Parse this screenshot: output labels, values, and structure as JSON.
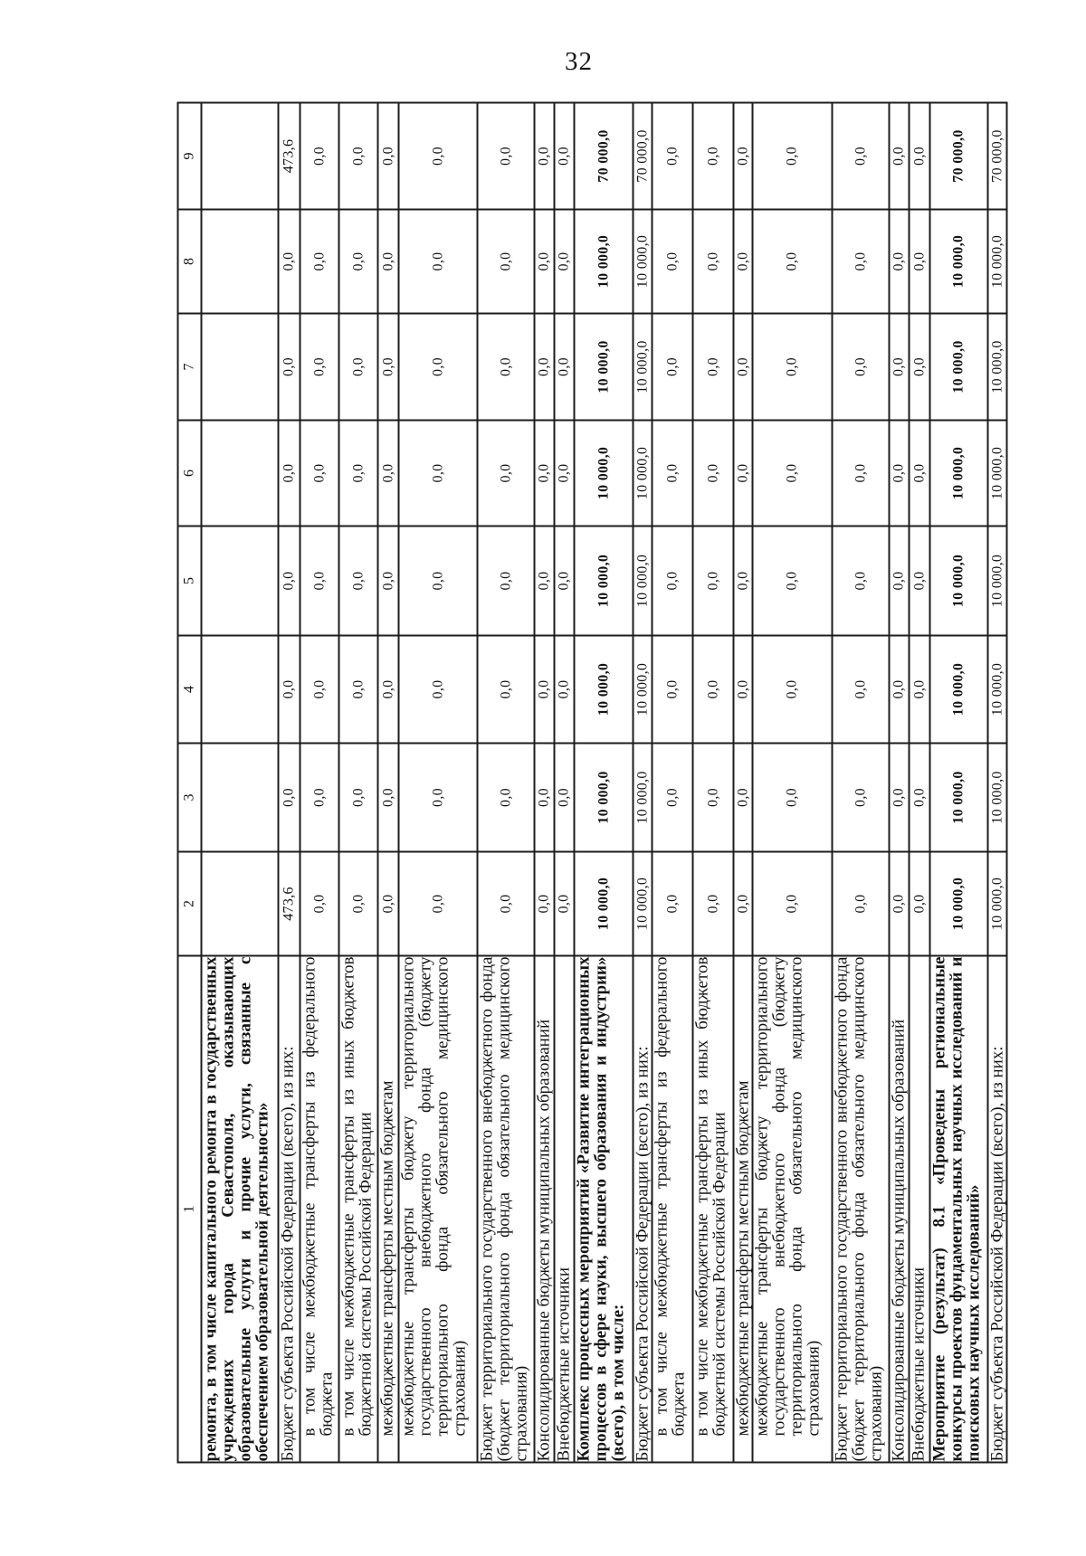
{
  "page": {
    "number": "32"
  },
  "table": {
    "column_headers": [
      "1",
      "2",
      "3",
      "4",
      "5",
      "6",
      "7",
      "8",
      "9"
    ],
    "rows": [
      {
        "label": "ремонта, в том числе капитального ремонта в государственных учреждениях города Севастополя, оказывающих образовательные услуги и прочие услуги, связанные с обеспечением образовательной деятельности»",
        "bold": true,
        "indent": false,
        "values": [
          "",
          "",
          "",
          "",
          "",
          "",
          "",
          ""
        ]
      },
      {
        "label": "Бюджет субъекта Российской Федерации (всего), из них:",
        "bold": false,
        "indent": false,
        "values": [
          "473,6",
          "0,0",
          "0,0",
          "0,0",
          "0,0",
          "0,0",
          "0,0",
          "473,6"
        ]
      },
      {
        "label": "в том числе межбюджетные трансферты из федерального бюджета",
        "bold": false,
        "indent": true,
        "values": [
          "0,0",
          "0,0",
          "0,0",
          "0,0",
          "0,0",
          "0,0",
          "0,0",
          "0,0"
        ]
      },
      {
        "label": "в том числе межбюджетные трансферты из иных бюджетов бюджетной системы Российской Федерации",
        "bold": false,
        "indent": true,
        "values": [
          "0,0",
          "0,0",
          "0,0",
          "0,0",
          "0,0",
          "0,0",
          "0,0",
          "0,0"
        ]
      },
      {
        "label": "межбюджетные трансферты местным бюджетам",
        "bold": false,
        "indent": true,
        "values": [
          "0,0",
          "0,0",
          "0,0",
          "0,0",
          "0,0",
          "0,0",
          "0,0",
          "0,0"
        ]
      },
      {
        "label": "межбюджетные трансферты бюджету территориального государственного внебюджетного фонда (бюджету территориального фонда обязательного медицинского страхования)",
        "bold": false,
        "indent": true,
        "values": [
          "0,0",
          "0,0",
          "0,0",
          "0,0",
          "0,0",
          "0,0",
          "0,0",
          "0,0"
        ]
      },
      {
        "label": "Бюджет территориального государственного внебюджетного фонда (бюджет территориального фонда обязательного медицинского страхования)",
        "bold": false,
        "indent": false,
        "values": [
          "0,0",
          "0,0",
          "0,0",
          "0,0",
          "0,0",
          "0,0",
          "0,0",
          "0,0"
        ]
      },
      {
        "label": "Консолидированные бюджеты муниципальных образований",
        "bold": false,
        "indent": false,
        "values": [
          "0,0",
          "0,0",
          "0,0",
          "0,0",
          "0,0",
          "0,0",
          "0,0",
          "0,0"
        ]
      },
      {
        "label": "Внебюджетные источники",
        "bold": false,
        "indent": false,
        "values": [
          "0,0",
          "0,0",
          "0,0",
          "0,0",
          "0,0",
          "0,0",
          "0,0",
          "0,0"
        ]
      },
      {
        "label": "Комплекс процессных мероприятий «Развитие интеграционных процессов в сфере науки, высшего образования и индустрии» (всего), в том числе:",
        "bold": true,
        "indent": false,
        "values": [
          "10 000,0",
          "10 000,0",
          "10 000,0",
          "10 000,0",
          "10 000,0",
          "10 000,0",
          "10 000,0",
          "70 000,0"
        ]
      },
      {
        "label": "Бюджет субъекта Российской Федерации (всего), из них:",
        "bold": false,
        "indent": false,
        "values": [
          "10 000,0",
          "10 000,0",
          "10 000,0",
          "10 000,0",
          "10 000,0",
          "10 000,0",
          "10 000,0",
          "70 000,0"
        ]
      },
      {
        "label": "в том числе межбюджетные трансферты из федерального бюджета",
        "bold": false,
        "indent": true,
        "values": [
          "0,0",
          "0,0",
          "0,0",
          "0,0",
          "0,0",
          "0,0",
          "0,0",
          "0,0"
        ]
      },
      {
        "label": "в том числе межбюджетные трансферты из иных бюджетов бюджетной системы Российской Федерации",
        "bold": false,
        "indent": true,
        "values": [
          "0,0",
          "0,0",
          "0,0",
          "0,0",
          "0,0",
          "0,0",
          "0,0",
          "0,0"
        ]
      },
      {
        "label": "межбюджетные трансферты местным бюджетам",
        "bold": false,
        "indent": true,
        "values": [
          "0,0",
          "0,0",
          "0,0",
          "0,0",
          "0,0",
          "0,0",
          "0,0",
          "0,0"
        ]
      },
      {
        "label": "межбюджетные трансферты бюджету территориального государственного внебюджетного фонда (бюджету территориального фонда обязательного медицинского страхования)",
        "bold": false,
        "indent": true,
        "values": [
          "0,0",
          "0,0",
          "0,0",
          "0,0",
          "0,0",
          "0,0",
          "0,0",
          "0,0"
        ]
      },
      {
        "label": "Бюджет территориального государственного внебюджетного фонда (бюджет территориального фонда обязательного медицинского страхования)",
        "bold": false,
        "indent": false,
        "values": [
          "0,0",
          "0,0",
          "0,0",
          "0,0",
          "0,0",
          "0,0",
          "0,0",
          "0,0"
        ]
      },
      {
        "label": "Консолидированные бюджеты муниципальных образований",
        "bold": false,
        "indent": false,
        "values": [
          "0,0",
          "0,0",
          "0,0",
          "0,0",
          "0,0",
          "0,0",
          "0,0",
          "0,0"
        ]
      },
      {
        "label": "Внебюджетные источники",
        "bold": false,
        "indent": false,
        "values": [
          "0,0",
          "0,0",
          "0,0",
          "0,0",
          "0,0",
          "0,0",
          "0,0",
          "0,0"
        ]
      },
      {
        "label": "Мероприятие (результат) 8.1 «Проведены региональные конкурсы проектов фундаментальных научных исследований и поисковых научных исследований»",
        "bold": true,
        "indent": false,
        "values": [
          "10 000,0",
          "10 000,0",
          "10 000,0",
          "10 000,0",
          "10 000,0",
          "10 000,0",
          "10 000,0",
          "70 000,0"
        ]
      },
      {
        "label": "Бюджет субъекта Российской Федерации (всего), из них:",
        "bold": false,
        "indent": false,
        "values": [
          "10 000,0",
          "10 000,0",
          "10 000,0",
          "10 000,0",
          "10 000,0",
          "10 000,0",
          "10 000,0",
          "70 000,0"
        ]
      }
    ]
  }
}
